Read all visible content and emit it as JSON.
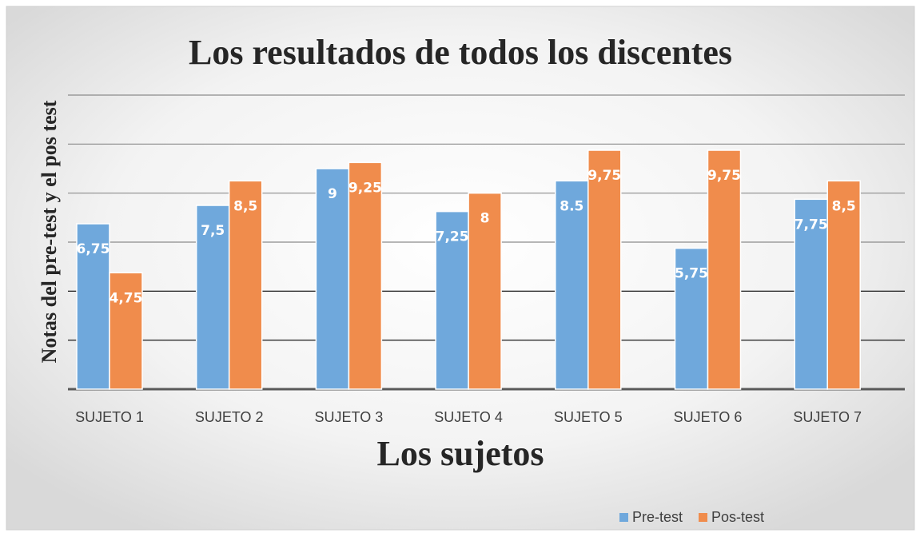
{
  "chart_data": {
    "type": "bar",
    "title": "Los resultados de todos los discentes",
    "x_label": "Los sujetos",
    "y_label": "Notas  del pre-test y el pos test",
    "categories": [
      "SUJETO 1",
      "SUJETO 2",
      "SUJETO 3",
      "SUJETO 4",
      "SUJETO 5",
      "SUJETO 6",
      "SUJETO 7"
    ],
    "series": [
      {
        "name": "Pre-test",
        "color": "#6fa8dc",
        "values": [
          6.75,
          7.5,
          9,
          7.25,
          8.5,
          5.75,
          7.75
        ],
        "value_labels": [
          "6,75",
          "7,5",
          "9",
          "7,25",
          "8.5",
          "5,75",
          "7,75"
        ]
      },
      {
        "name": "Pos-test",
        "color": "#f08c4c",
        "values": [
          4.75,
          8.5,
          9.25,
          8,
          9.75,
          9.75,
          8.5
        ],
        "value_labels": [
          "4,75",
          "8,5",
          "9,25",
          "8",
          "9,75",
          "9,75",
          "8,5"
        ]
      }
    ],
    "ylim": [
      0,
      12
    ],
    "yticks": [
      0,
      2,
      4,
      6,
      8,
      10,
      12
    ],
    "grid": true,
    "legend": "bottom"
  }
}
